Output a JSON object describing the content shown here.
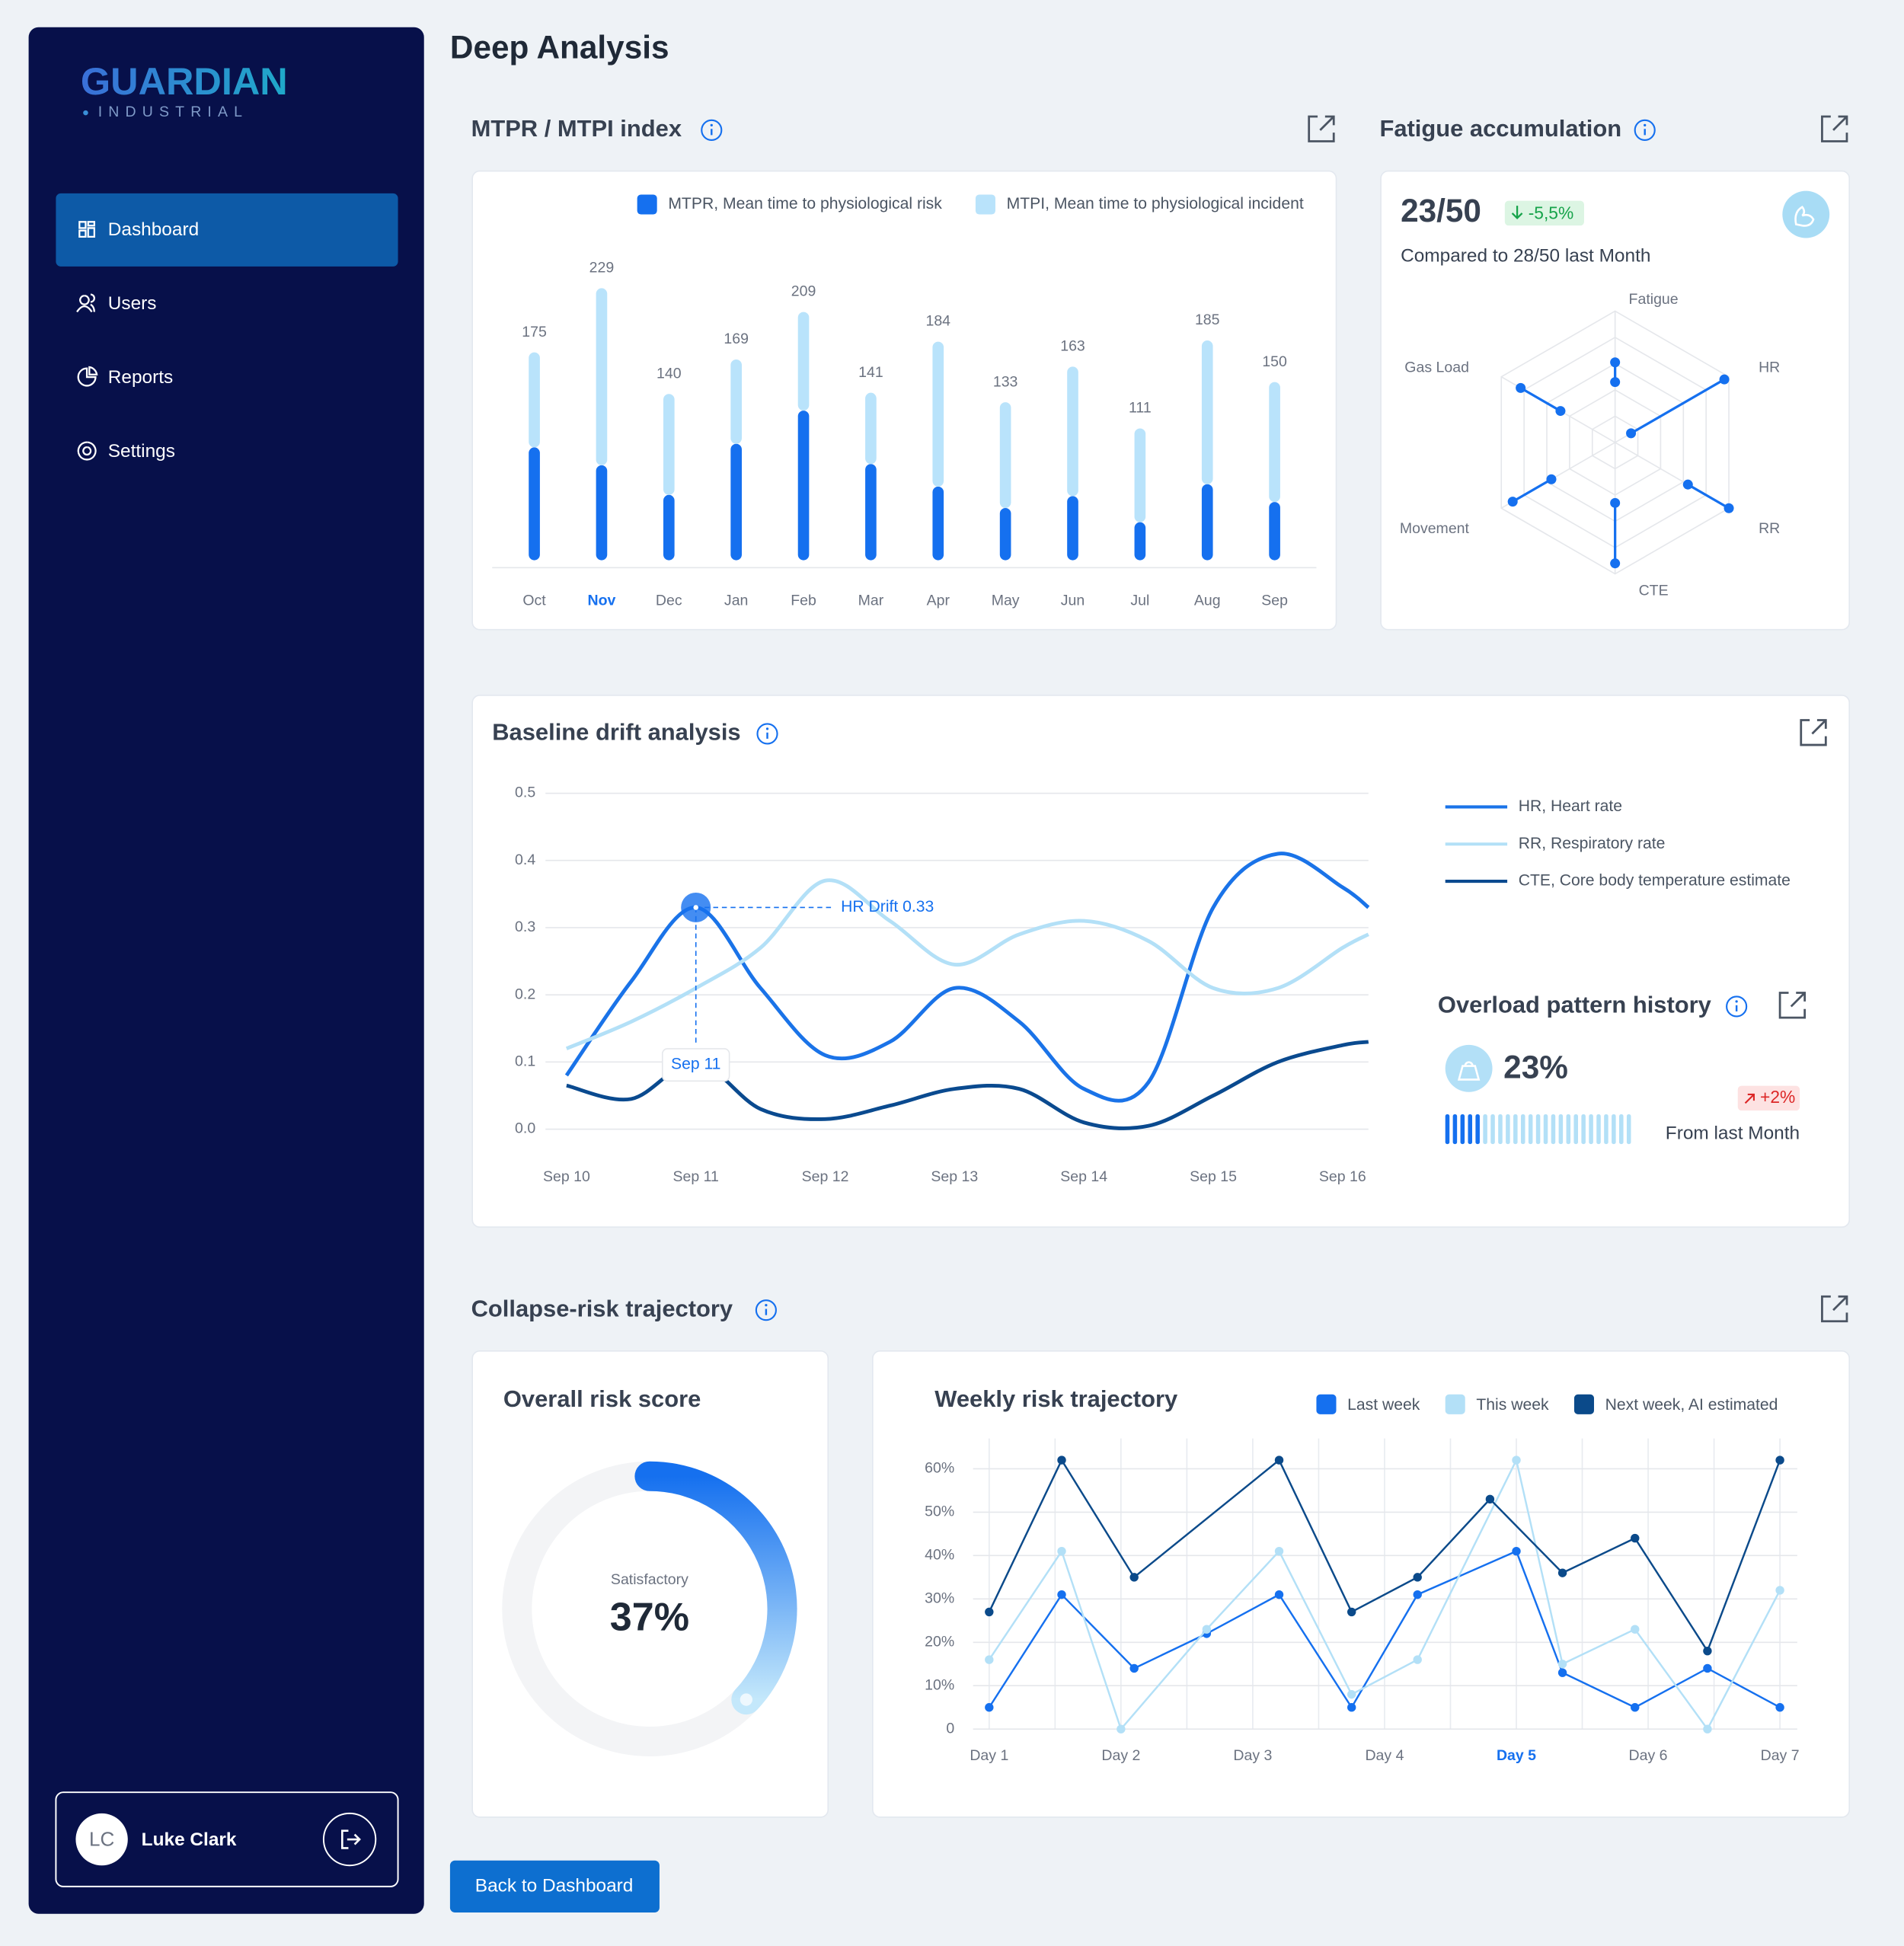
{
  "sidebar": {
    "logo": "GUARDIAN",
    "logo_sub": "INDUSTRIAL",
    "nav": [
      "Dashboard",
      "Users",
      "Reports",
      "Settings"
    ],
    "active": 0,
    "user": {
      "initials": "LC",
      "name": "Luke Clark"
    }
  },
  "page_title": "Deep Analysis",
  "section_title": "Collapse-risk trajectory",
  "back_button": "Back to Dashboard",
  "chart_data": [
    {
      "type": "bar",
      "stacked": true,
      "title": "MTPR / MTPI index",
      "categories": [
        "Oct",
        "Nov",
        "Dec",
        "Jan",
        "Feb",
        "Mar",
        "Apr",
        "May",
        "Jun",
        "Jul",
        "Aug",
        "Sep"
      ],
      "highlight_index": 1,
      "series": [
        {
          "name": "MTPR, Mean time to physiological risk",
          "color": "#1570ef",
          "values": [
            95,
            80,
            55,
            98,
            126,
            81,
            62,
            44,
            54,
            32,
            64,
            49
          ]
        },
        {
          "name": "MTPI, Mean time to physiological incident",
          "color": "#b9e3fb",
          "values": [
            80,
            149,
            85,
            71,
            83,
            60,
            122,
            89,
            109,
            79,
            121,
            101
          ]
        }
      ],
      "total_labels": [
        "175",
        "229",
        "140",
        "169",
        "209",
        "141",
        "184",
        "133",
        "163",
        "111",
        "185",
        "150"
      ],
      "ylim": [
        0,
        240
      ]
    },
    {
      "type": "radar",
      "title": "Fatigue accumulation",
      "score": "23/50",
      "change": "-5,5%",
      "subtitle": "Compared to 28/50 last Month",
      "axes": [
        "Fatigue",
        "HR",
        "RR",
        "CTE",
        "Movement",
        "Gas Load"
      ],
      "low": [
        46,
        14,
        64,
        46,
        56,
        48
      ],
      "high": [
        61,
        96,
        100,
        92,
        90,
        83
      ],
      "color": "#1570ef",
      "rlim": [
        0,
        100
      ],
      "rticks": [
        20,
        40,
        60,
        80,
        100
      ]
    },
    {
      "type": "line",
      "title": "Baseline drift analysis",
      "smooth": true,
      "grid": true,
      "x": [
        10,
        10.5,
        11,
        11.5,
        12,
        12.5,
        13,
        13.5,
        14,
        14.5,
        15,
        15.5,
        16,
        16.2
      ],
      "xlim": [
        10,
        16.2
      ],
      "xticks": [
        {
          "value": 10,
          "label": "Sep 10"
        },
        {
          "value": 11,
          "label": "Sep 11"
        },
        {
          "value": 12,
          "label": "Sep 12"
        },
        {
          "value": 13,
          "label": "Sep 13"
        },
        {
          "value": 14,
          "label": "Sep 14"
        },
        {
          "value": 15,
          "label": "Sep 15"
        },
        {
          "value": 16,
          "label": "Sep 16"
        }
      ],
      "ylim": [
        0,
        0.5
      ],
      "yticks": [
        {
          "value": 0,
          "label": "0.0"
        },
        0.1,
        0.2,
        0.3,
        0.4,
        0.5
      ],
      "series": [
        {
          "name": "HR, Heart rate",
          "color": "#1a73e8",
          "values": [
            0.08,
            0.22,
            0.33,
            0.21,
            0.11,
            0.13,
            0.21,
            0.16,
            0.06,
            0.07,
            0.33,
            0.41,
            0.36,
            0.33
          ]
        },
        {
          "name": "RR, Respiratory rate",
          "color": "#b3e0f7",
          "values": [
            0.12,
            0.16,
            0.21,
            0.27,
            0.37,
            0.31,
            0.245,
            0.29,
            0.31,
            0.28,
            0.21,
            0.21,
            0.27,
            0.29
          ]
        },
        {
          "name": "CTE, Core body temperature estimate",
          "color": "#0a4a8f",
          "values": [
            0.065,
            0.045,
            0.1,
            0.03,
            0.015,
            0.035,
            0.06,
            0.06,
            0.01,
            0.005,
            0.05,
            0.1,
            0.125,
            0.13
          ]
        }
      ],
      "annotation": {
        "text": "HR Drift 0.33",
        "date": "Sep 11",
        "series": 0,
        "point": 2
      }
    },
    {
      "type": "progress",
      "title": "Overload pattern history",
      "value": 23,
      "value_label": "23%",
      "change": "+2%",
      "note": "From last Month",
      "vlim": [
        0,
        100
      ],
      "colors": [
        "#1570ef",
        "#b3e0f7"
      ]
    },
    {
      "type": "gauge",
      "title": "Overall risk score",
      "status": "Satisfactory",
      "value": 37,
      "value_label": "37%",
      "vlim": [
        0,
        100
      ]
    },
    {
      "type": "line",
      "title": "Weekly risk trajectory",
      "markers": true,
      "grid": true,
      "xlim": [
        1,
        7
      ],
      "xticks": [
        {
          "value": 1,
          "label": "Day 1"
        },
        {
          "value": 2,
          "label": "Day 2"
        },
        {
          "value": 3,
          "label": "Day 3"
        },
        {
          "value": 4,
          "label": "Day 4"
        },
        {
          "value": 5,
          "label": "Day 5"
        },
        {
          "value": 6,
          "label": "Day 6"
        },
        {
          "value": 7,
          "label": "Day 7"
        }
      ],
      "highlight_index": 4,
      "xgrid": [
        1,
        1.5,
        2,
        2.5,
        3,
        3.5,
        4,
        4.5,
        5,
        5.5,
        6,
        6.5,
        7
      ],
      "ylim": [
        0,
        67
      ],
      "yticks": [
        0,
        {
          "value": 10,
          "label": "10%"
        },
        {
          "value": 20,
          "label": "20%"
        },
        {
          "value": 30,
          "label": "30%"
        },
        {
          "value": 40,
          "label": "40%"
        },
        {
          "value": 50,
          "label": "50%"
        },
        {
          "value": 60,
          "label": "60%"
        }
      ],
      "series": [
        {
          "name": "Last week",
          "color": "#1570ef",
          "x": [
            1,
            1.55,
            2.1,
            2.65,
            3.2,
            3.75,
            4.25,
            5,
            5.35,
            5.9,
            6.45,
            7
          ],
          "values": [
            5,
            31,
            14,
            22,
            31,
            5,
            31,
            41,
            13,
            5,
            14,
            5
          ]
        },
        {
          "name": "This week",
          "color": "#b3e0f7",
          "x": [
            1,
            1.55,
            2,
            2.65,
            3.2,
            3.75,
            4.25,
            5,
            5.35,
            5.9,
            6.45,
            7
          ],
          "values": [
            16,
            41,
            0,
            23,
            41,
            8,
            16,
            62,
            15,
            23,
            0,
            32
          ]
        },
        {
          "name": "Next week, AI estimated",
          "color": "#0b4a8a",
          "x": [
            1,
            1.55,
            2.1,
            3.2,
            3.75,
            4.25,
            4.8,
            5.35,
            5.9,
            6.45,
            7
          ],
          "values": [
            27,
            62,
            35,
            62,
            27,
            35,
            53,
            36,
            44,
            18,
            62
          ]
        }
      ]
    }
  ]
}
